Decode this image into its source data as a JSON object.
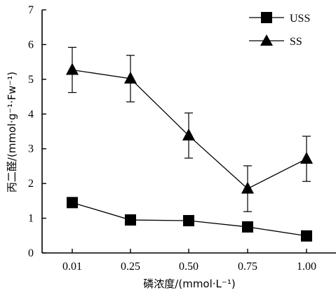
{
  "chart_data": {
    "type": "line",
    "categories": [
      "0.01",
      "0.25",
      "0.50",
      "0.75",
      "1.00"
    ],
    "xlabel": "磷浓度/(mmol·L⁻¹)",
    "ylabel": "丙二醛/(mmol·g⁻¹·Fw⁻¹)",
    "ylim": [
      0,
      7
    ],
    "yticks": [
      "0",
      "1",
      "2",
      "3",
      "4",
      "5",
      "6",
      "7"
    ],
    "grid": false,
    "legend_position": "top-right",
    "series": [
      {
        "name": "USS",
        "marker": "square",
        "values": [
          1.45,
          0.95,
          0.93,
          0.75,
          0.49
        ]
      },
      {
        "name": "SS",
        "marker": "triangle",
        "values": [
          5.27,
          5.02,
          3.38,
          1.85,
          2.71
        ],
        "error": [
          0.65,
          0.67,
          0.65,
          0.66,
          0.65
        ]
      }
    ]
  }
}
